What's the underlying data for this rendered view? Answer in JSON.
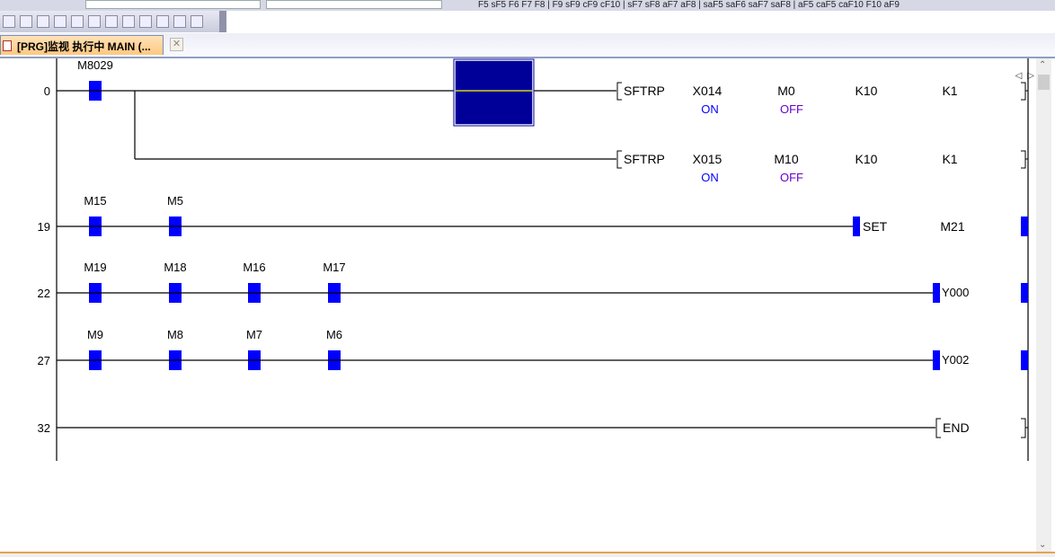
{
  "toolbar": {
    "fkeys": "F5 sF5 F6 F7 F8 | F9 sF9 cF9 cF10 | sF7 sF8 aF7 aF8 | saF5 saF6 saF7 saF8 | aF5 caF5 caF10 F10 aF9"
  },
  "tab": {
    "title": "[PRG]监视 执行中 MAIN (...",
    "close": "✕"
  },
  "nav": {
    "prev": "◁",
    "next": "▷",
    "menu": "▾"
  },
  "colors": {
    "contact": "#0000ff",
    "selection": "#000099",
    "on_off": "#0000ff",
    "off": "#6600cc"
  },
  "ladder": {
    "rungs": [
      {
        "step": "0",
        "contacts": [
          "M8029"
        ],
        "instructions": [
          {
            "name": "SFTRP",
            "operands": [
              "X014",
              "M0",
              "K10",
              "K1"
            ],
            "monitor": [
              "ON",
              "OFF"
            ]
          },
          {
            "name": "SFTRP",
            "operands": [
              "X015",
              "M10",
              "K10",
              "K1"
            ],
            "monitor": [
              "ON",
              "OFF"
            ]
          }
        ]
      },
      {
        "step": "19",
        "contacts": [
          "M15",
          "M5"
        ],
        "output": {
          "type": "SET",
          "name": "SET",
          "operand": "M21"
        }
      },
      {
        "step": "22",
        "contacts": [
          "M19",
          "M18",
          "M16",
          "M17"
        ],
        "output": {
          "type": "coil",
          "operand": "Y000"
        }
      },
      {
        "step": "27",
        "contacts": [
          "M9",
          "M8",
          "M7",
          "M6"
        ],
        "output": {
          "type": "coil",
          "operand": "Y002"
        }
      },
      {
        "step": "32",
        "contacts": [],
        "output": {
          "type": "END",
          "name": "END"
        }
      }
    ]
  }
}
